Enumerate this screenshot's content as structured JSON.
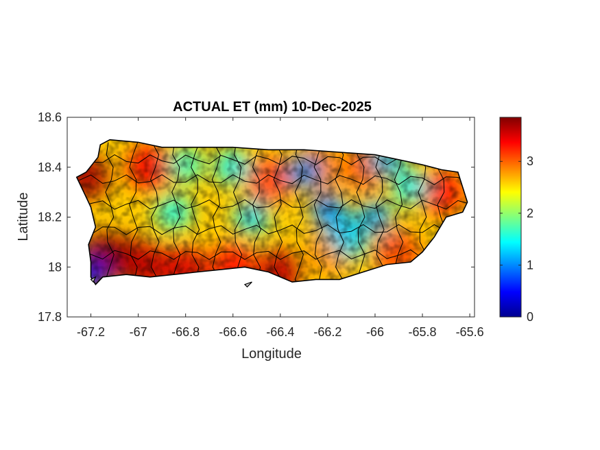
{
  "chart_data": {
    "type": "heatmap",
    "title": "ACTUAL ET (mm) 10-Dec-2025",
    "xlabel": "Longitude",
    "ylabel": "Latitude",
    "xlim": [
      -67.3,
      -65.58
    ],
    "ylim": [
      17.8,
      18.6
    ],
    "xticks": [
      -67.2,
      -67,
      -66.8,
      -66.6,
      -66.4,
      -66.2,
      -66,
      -65.8,
      -65.6
    ],
    "xtick_labels": [
      "-67.2",
      "-67",
      "-66.8",
      "-66.6",
      "-66.4",
      "-66.2",
      "-66",
      "-65.8",
      "-65.6"
    ],
    "yticks": [
      17.8,
      18,
      18.2,
      18.4,
      18.6
    ],
    "ytick_labels": [
      "17.8",
      "18",
      "18.2",
      "18.4",
      "18.6"
    ],
    "colorbar": {
      "colormap": "jet",
      "range": [
        0,
        3.85
      ],
      "ticks": [
        0,
        1,
        2,
        3
      ],
      "tick_labels": [
        "0",
        "1",
        "2",
        "3"
      ]
    },
    "island_outline_lonlat": [
      [
        -67.26,
        18.36
      ],
      [
        -67.22,
        18.38
      ],
      [
        -67.17,
        18.44
      ],
      [
        -67.16,
        18.49
      ],
      [
        -67.12,
        18.51
      ],
      [
        -67.0,
        18.5
      ],
      [
        -66.9,
        18.48
      ],
      [
        -66.75,
        18.48
      ],
      [
        -66.6,
        18.48
      ],
      [
        -66.45,
        18.47
      ],
      [
        -66.3,
        18.47
      ],
      [
        -66.15,
        18.46
      ],
      [
        -66.0,
        18.45
      ],
      [
        -65.9,
        18.43
      ],
      [
        -65.8,
        18.41
      ],
      [
        -65.72,
        18.39
      ],
      [
        -65.65,
        18.38
      ],
      [
        -65.63,
        18.32
      ],
      [
        -65.61,
        18.26
      ],
      [
        -65.63,
        18.22
      ],
      [
        -65.7,
        18.2
      ],
      [
        -65.75,
        18.12
      ],
      [
        -65.8,
        18.06
      ],
      [
        -65.85,
        18.02
      ],
      [
        -65.95,
        18.01
      ],
      [
        -66.05,
        17.98
      ],
      [
        -66.15,
        17.95
      ],
      [
        -66.25,
        17.95
      ],
      [
        -66.35,
        17.94
      ],
      [
        -66.45,
        17.98
      ],
      [
        -66.55,
        18.0
      ],
      [
        -66.65,
        17.99
      ],
      [
        -66.75,
        17.98
      ],
      [
        -66.85,
        17.97
      ],
      [
        -66.95,
        17.96
      ],
      [
        -67.05,
        17.97
      ],
      [
        -67.15,
        17.96
      ],
      [
        -67.18,
        17.93
      ],
      [
        -67.2,
        17.96
      ],
      [
        -67.2,
        18.02
      ],
      [
        -67.21,
        18.09
      ],
      [
        -67.18,
        18.16
      ],
      [
        -67.2,
        18.24
      ],
      [
        -67.23,
        18.3
      ]
    ],
    "hotspots": [
      {
        "lon": -67.05,
        "lat": 18.03,
        "value": 3.7
      },
      {
        "lon": -66.95,
        "lat": 18.0,
        "value": 3.6
      },
      {
        "lon": -67.15,
        "lat": 18.05,
        "value": 3.8
      },
      {
        "lon": -66.8,
        "lat": 17.99,
        "value": 3.5
      },
      {
        "lon": -66.6,
        "lat": 18.0,
        "value": 3.3
      },
      {
        "lon": -66.4,
        "lat": 17.98,
        "value": 3.6
      },
      {
        "lon": -66.95,
        "lat": 18.4,
        "value": 3.4
      },
      {
        "lon": -67.22,
        "lat": 18.36,
        "value": 3.7
      },
      {
        "lon": -66.45,
        "lat": 18.35,
        "value": 3.1
      },
      {
        "lon": -66.25,
        "lat": 18.4,
        "value": 2.9
      },
      {
        "lon": -66.05,
        "lat": 18.4,
        "value": 3.0
      },
      {
        "lon": -65.72,
        "lat": 18.3,
        "value": 3.3
      },
      {
        "lon": -65.9,
        "lat": 18.05,
        "value": 3.1
      },
      {
        "lon": -66.2,
        "lat": 18.05,
        "value": 2.8
      }
    ],
    "coldspots": [
      {
        "lon": -66.2,
        "lat": 18.23,
        "value": 0.9
      },
      {
        "lon": -66.15,
        "lat": 18.16,
        "value": 1.2
      },
      {
        "lon": -66.52,
        "lat": 18.2,
        "value": 1.3
      },
      {
        "lon": -66.0,
        "lat": 18.2,
        "value": 1.1
      },
      {
        "lon": -65.85,
        "lat": 18.32,
        "value": 1.4
      },
      {
        "lon": -67.2,
        "lat": 17.97,
        "value": 0.4
      },
      {
        "lon": -66.3,
        "lat": 18.38,
        "value": 1.0
      },
      {
        "lon": -66.6,
        "lat": 18.4,
        "value": 1.4
      },
      {
        "lon": -66.8,
        "lat": 18.41,
        "value": 1.6
      },
      {
        "lon": -66.85,
        "lat": 18.22,
        "value": 1.5
      },
      {
        "lon": -66.1,
        "lat": 18.1,
        "value": 1.3
      },
      {
        "lon": -65.95,
        "lat": 18.43,
        "value": 1.2
      }
    ],
    "small_islands_lonlat": [
      [
        [
          -66.55,
          17.93
        ],
        [
          -66.52,
          17.94
        ],
        [
          -66.54,
          17.92
        ]
      ],
      [
        [
          -67.2,
          17.95
        ],
        [
          -67.18,
          17.96
        ],
        [
          -67.19,
          17.94
        ]
      ]
    ]
  }
}
